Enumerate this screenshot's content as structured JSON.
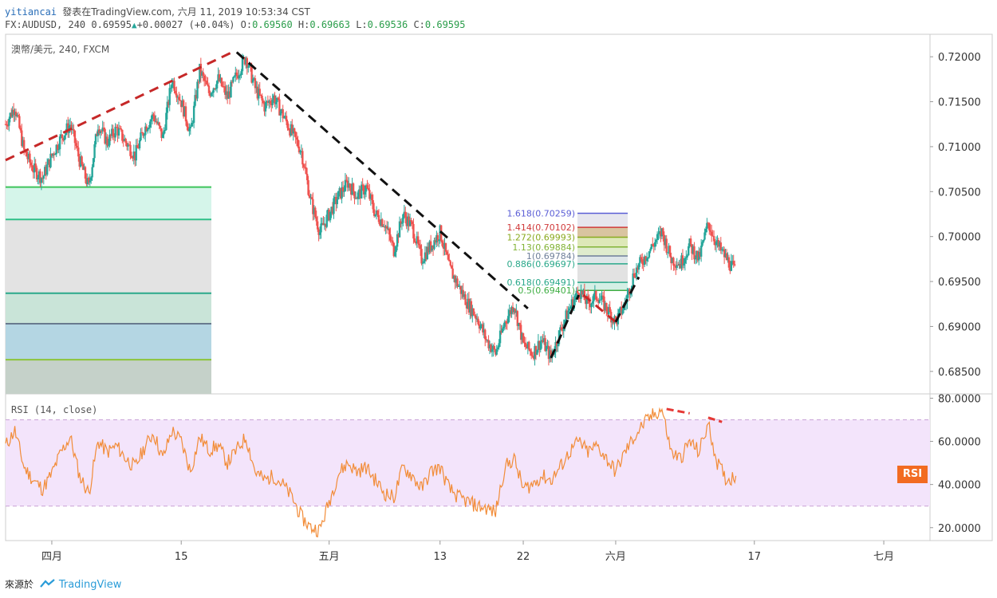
{
  "header": {
    "user": "yitiancai",
    "published": "發表在TradingView.com, 六月 11, 2019 10:53:34 CST",
    "symbol": "FX:AUDUSD, 240",
    "last": "0.69595",
    "change_icon": "triangle-up-icon",
    "change": "+0.00027 (+0.04%)",
    "o_label": "O:",
    "o_value": "0.69560",
    "h_label": "H:",
    "h_value": "0.69663",
    "l_label": "L:",
    "l_value": "0.69536",
    "c_label": "C:",
    "c_value": "0.69595"
  },
  "footer": {
    "source_label": "來源於",
    "brand": "TradingView",
    "brand_icon": "tradingview-logo-icon"
  },
  "chart_data": [
    {
      "type": "candlestick",
      "title": "澳幣/美元, 240, FXCM",
      "ylim": [
        0.6825,
        0.7225
      ],
      "y_ticks": [
        0.685,
        0.69,
        0.695,
        0.7,
        0.705,
        0.71,
        0.715,
        0.72
      ],
      "y_tick_labels": [
        "0.68500",
        "0.69000",
        "0.69500",
        "0.70000",
        "0.70500",
        "0.71000",
        "0.71500",
        "0.72000"
      ],
      "x_ticks": [
        {
          "t": 8,
          "label": "四月"
        },
        {
          "t": 22,
          "label": "15"
        },
        {
          "t": 38,
          "label": "五月"
        },
        {
          "t": 50,
          "label": "13"
        },
        {
          "t": 59,
          "label": "22"
        },
        {
          "t": 69,
          "label": "六月"
        },
        {
          "t": 84,
          "label": "17"
        },
        {
          "t": 98,
          "label": "七月"
        }
      ],
      "xlim": [
        3,
        103
      ],
      "price_path": [
        [
          3,
          0.7125
        ],
        [
          4,
          0.7145
        ],
        [
          5,
          0.7095
        ],
        [
          6,
          0.7075
        ],
        [
          7,
          0.7065
        ],
        [
          8,
          0.709
        ],
        [
          9,
          0.711
        ],
        [
          10,
          0.7125
        ],
        [
          11,
          0.7085
        ],
        [
          12,
          0.7055
        ],
        [
          13,
          0.7125
        ],
        [
          14,
          0.7105
        ],
        [
          15,
          0.712
        ],
        [
          16,
          0.7105
        ],
        [
          17,
          0.709
        ],
        [
          18,
          0.712
        ],
        [
          19,
          0.7135
        ],
        [
          20,
          0.711
        ],
        [
          21,
          0.7175
        ],
        [
          22,
          0.715
        ],
        [
          23,
          0.7115
        ],
        [
          24,
          0.7185
        ],
        [
          25,
          0.716
        ],
        [
          26,
          0.7175
        ],
        [
          27,
          0.7155
        ],
        [
          28,
          0.718
        ],
        [
          29,
          0.72
        ],
        [
          30,
          0.7165
        ],
        [
          31,
          0.7145
        ],
        [
          32,
          0.7155
        ],
        [
          33,
          0.7135
        ],
        [
          34,
          0.7115
        ],
        [
          35,
          0.7095
        ],
        [
          36,
          0.704
        ],
        [
          37,
          0.7005
        ],
        [
          38,
          0.7025
        ],
        [
          39,
          0.7045
        ],
        [
          40,
          0.706
        ],
        [
          41,
          0.7045
        ],
        [
          42,
          0.7055
        ],
        [
          43,
          0.7025
        ],
        [
          44,
          0.7015
        ],
        [
          45,
          0.6985
        ],
        [
          46,
          0.7025
        ],
        [
          47,
          0.701
        ],
        [
          48,
          0.6975
        ],
        [
          49,
          0.699
        ],
        [
          50,
          0.7005
        ],
        [
          51,
          0.6965
        ],
        [
          52,
          0.6945
        ],
        [
          53,
          0.6925
        ],
        [
          54,
          0.691
        ],
        [
          55,
          0.6885
        ],
        [
          56,
          0.687
        ],
        [
          57,
          0.6905
        ],
        [
          58,
          0.6925
        ],
        [
          59,
          0.688
        ],
        [
          60,
          0.687
        ],
        [
          61,
          0.6885
        ],
        [
          62,
          0.6865
        ],
        [
          63,
          0.6895
        ],
        [
          64,
          0.692
        ],
        [
          65,
          0.694
        ],
        [
          66,
          0.6925
        ],
        [
          67,
          0.6935
        ],
        [
          68,
          0.692
        ],
        [
          69,
          0.6905
        ],
        [
          70,
          0.6925
        ],
        [
          71,
          0.696
        ],
        [
          72,
          0.6975
        ],
        [
          73,
          0.699
        ],
        [
          74,
          0.7005
        ],
        [
          75,
          0.6975
        ],
        [
          76,
          0.697
        ],
        [
          77,
          0.699
        ],
        [
          78,
          0.6975
        ],
        [
          79,
          0.7015
        ],
        [
          80,
          0.699
        ],
        [
          81,
          0.6975
        ],
        [
          82,
          0.696
        ]
      ],
      "lines": [
        {
          "name": "uptrend",
          "color": "#c62828",
          "from": [
            3,
            0.7085
          ],
          "to": [
            27.5,
            0.7205
          ]
        },
        {
          "name": "downtrend",
          "color": "#111111",
          "from": [
            28,
            0.7205
          ],
          "to": [
            59.5,
            0.692
          ]
        },
        {
          "name": "impulse-up",
          "color": "#111111",
          "from": [
            62,
            0.6865
          ],
          "to": [
            65,
            0.6935
          ]
        },
        {
          "name": "pullback",
          "color": "#c62828",
          "from": [
            65.5,
            0.6935
          ],
          "to": [
            69,
            0.6905
          ]
        },
        {
          "name": "breakout",
          "color": "#111111",
          "from": [
            69,
            0.6905
          ],
          "to": [
            71.5,
            0.6955
          ]
        }
      ],
      "left_zone_levels": [
        0.7055,
        0.7019,
        0.6937,
        0.6903,
        0.6863
      ],
      "fib_levels": [
        {
          "label": "1.618(0.70259)",
          "value": 0.70259,
          "color": "#5b5ed6"
        },
        {
          "label": "1.414(0.70102)",
          "value": 0.70102,
          "color": "#d03a3a"
        },
        {
          "label": "1.272(0.69993)",
          "value": 0.69993,
          "color": "#8aaa1f"
        },
        {
          "label": "1.13(0.69884)",
          "value": 0.69884,
          "color": "#82b336"
        },
        {
          "label": "1(0.69784)",
          "value": 0.69784,
          "color": "#6f7f9a"
        },
        {
          "label": "0.886(0.69697)",
          "value": 0.69697,
          "color": "#2aa88a"
        },
        {
          "label": "0.618(0.69491)",
          "value": 0.69491,
          "color": "#2aa88a"
        },
        {
          "label": "0.5(0.69401)",
          "value": 0.69401,
          "color": "#3fae43"
        }
      ]
    },
    {
      "type": "line",
      "title": "RSI (14, close)",
      "ylim": [
        14,
        82
      ],
      "y_ticks": [
        20,
        40,
        60,
        80
      ],
      "y_tick_labels": [
        "20.0000",
        "40.0000",
        "60.0000",
        "80.0000"
      ],
      "bands": [
        30,
        70
      ],
      "badge": "RSI",
      "values": [
        [
          3,
          58
        ],
        [
          4,
          65
        ],
        [
          5,
          48
        ],
        [
          6,
          42
        ],
        [
          7,
          38
        ],
        [
          8,
          45
        ],
        [
          9,
          55
        ],
        [
          10,
          62
        ],
        [
          11,
          44
        ],
        [
          12,
          36
        ],
        [
          13,
          60
        ],
        [
          14,
          55
        ],
        [
          15,
          58
        ],
        [
          16,
          52
        ],
        [
          17,
          48
        ],
        [
          18,
          57
        ],
        [
          19,
          64
        ],
        [
          20,
          52
        ],
        [
          21,
          65
        ],
        [
          22,
          60
        ],
        [
          23,
          46
        ],
        [
          24,
          62
        ],
        [
          25,
          56
        ],
        [
          26,
          58
        ],
        [
          27,
          50
        ],
        [
          28,
          56
        ],
        [
          29,
          62
        ],
        [
          30,
          46
        ],
        [
          31,
          42
        ],
        [
          32,
          44
        ],
        [
          33,
          40
        ],
        [
          34,
          34
        ],
        [
          35,
          25
        ],
        [
          36,
          20
        ],
        [
          37,
          19
        ],
        [
          38,
          32
        ],
        [
          39,
          45
        ],
        [
          40,
          50
        ],
        [
          41,
          46
        ],
        [
          42,
          48
        ],
        [
          43,
          42
        ],
        [
          44,
          36
        ],
        [
          45,
          34
        ],
        [
          46,
          48
        ],
        [
          47,
          44
        ],
        [
          48,
          38
        ],
        [
          49,
          46
        ],
        [
          50,
          48
        ],
        [
          51,
          38
        ],
        [
          52,
          34
        ],
        [
          53,
          32
        ],
        [
          54,
          30
        ],
        [
          55,
          29
        ],
        [
          56,
          27
        ],
        [
          57,
          48
        ],
        [
          58,
          52
        ],
        [
          59,
          38
        ],
        [
          60,
          40
        ],
        [
          61,
          44
        ],
        [
          62,
          42
        ],
        [
          63,
          48
        ],
        [
          64,
          55
        ],
        [
          65,
          60
        ],
        [
          66,
          55
        ],
        [
          67,
          58
        ],
        [
          68,
          52
        ],
        [
          69,
          46
        ],
        [
          70,
          55
        ],
        [
          71,
          62
        ],
        [
          72,
          68
        ],
        [
          73,
          72
        ],
        [
          74,
          75
        ],
        [
          75,
          55
        ],
        [
          76,
          52
        ],
        [
          77,
          60
        ],
        [
          78,
          55
        ],
        [
          79,
          68
        ],
        [
          80,
          50
        ],
        [
          81,
          42
        ],
        [
          82,
          44
        ]
      ],
      "divergence_lines": [
        {
          "from": [
            74.5,
            75
          ],
          "to": [
            77,
            73
          ]
        },
        {
          "from": [
            79,
            71
          ],
          "to": [
            80.5,
            69
          ]
        }
      ]
    }
  ]
}
